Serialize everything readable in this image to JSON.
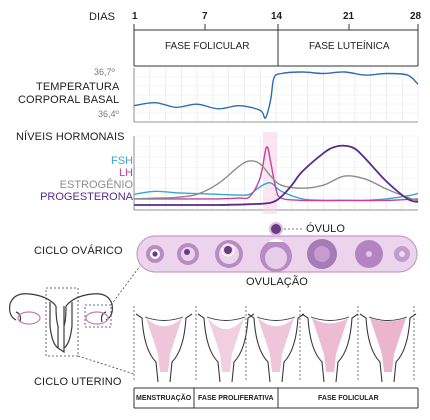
{
  "axis": {
    "title": "DIAS",
    "ticks": [
      "1",
      "7",
      "14",
      "21",
      "28"
    ]
  },
  "phases": {
    "follicular": "FASE FOLICULAR",
    "luteal": "FASE LUTEÍNICA"
  },
  "temperature": {
    "label_line1": "TEMPERATURA",
    "label_line2": "CORPORAL BASAL",
    "max": "36,7º",
    "min": "36,4º"
  },
  "hormones": {
    "title": "NÍVEIS HORMONAIS",
    "fsh": "FSH",
    "lh": "LH",
    "estrogen": "ESTROGÊNIO",
    "progesterone": "PROGESTERONA"
  },
  "ovarian": {
    "title": "CICLO OVÁRICO",
    "ovum": "ÓVULO",
    "ovulation": "OVULAÇÃO"
  },
  "uterine": {
    "title": "CICLO UTERINO",
    "menstruation": "MENSTRUAÇÃO",
    "proliferative": "FASE PROLIFERATIVA",
    "follicular": "FASE FOLICULAR"
  },
  "colors": {
    "fsh": "#35a9c9",
    "lh": "#c5419e",
    "estrogen": "#8c8c8c",
    "progesterone": "#5a2a8c",
    "temperature": "#2a6db0",
    "ovary_band": "#dcb8dd",
    "ovary_follicle": "#a36cb3",
    "endometrium": "#e6a3c2"
  },
  "chart_data": {
    "type": "line",
    "xlabel": "DIAS",
    "xlim": [
      1,
      28
    ],
    "series": [
      {
        "name": "FSH",
        "x": [
          1,
          3,
          5,
          7,
          9,
          11,
          12,
          13,
          14,
          15,
          17,
          19,
          21,
          23,
          25,
          27,
          28
        ],
        "y": [
          0.18,
          0.22,
          0.2,
          0.19,
          0.18,
          0.17,
          0.18,
          0.28,
          0.33,
          0.22,
          0.12,
          0.1,
          0.1,
          0.1,
          0.12,
          0.16,
          0.19
        ]
      },
      {
        "name": "LH",
        "x": [
          1,
          3,
          5,
          7,
          9,
          11,
          12,
          13,
          13.6,
          14,
          14.5,
          15,
          17,
          21,
          25,
          28
        ],
        "y": [
          0.12,
          0.12,
          0.12,
          0.12,
          0.12,
          0.13,
          0.15,
          0.4,
          0.8,
          0.6,
          0.25,
          0.13,
          0.1,
          0.1,
          0.1,
          0.12
        ]
      },
      {
        "name": "ESTROGÊNIO",
        "x": [
          1,
          3,
          5,
          7,
          9,
          11,
          12,
          13,
          14,
          15,
          17,
          19,
          21,
          23,
          25,
          27,
          28
        ],
        "y": [
          0.12,
          0.13,
          0.14,
          0.18,
          0.32,
          0.55,
          0.62,
          0.58,
          0.42,
          0.3,
          0.26,
          0.3,
          0.42,
          0.38,
          0.25,
          0.14,
          0.1
        ]
      },
      {
        "name": "PROGESTERONA",
        "x": [
          1,
          5,
          9,
          12,
          14,
          15,
          16,
          17,
          19,
          20,
          21,
          22,
          23,
          25,
          27,
          28
        ],
        "y": [
          0.04,
          0.04,
          0.04,
          0.05,
          0.07,
          0.15,
          0.3,
          0.48,
          0.72,
          0.8,
          0.82,
          0.78,
          0.65,
          0.35,
          0.12,
          0.08
        ]
      }
    ],
    "temperature": {
      "name": "TEMPERATURA CORPORAL BASAL",
      "x": [
        1,
        3,
        5,
        7,
        9,
        11,
        13,
        13.5,
        14,
        14.3,
        15,
        17,
        19,
        21,
        23,
        25,
        27,
        28
      ],
      "y": [
        36.48,
        36.5,
        36.47,
        36.49,
        36.46,
        36.48,
        36.45,
        36.4,
        36.52,
        36.66,
        36.69,
        36.7,
        36.69,
        36.7,
        36.68,
        36.69,
        36.68,
        36.62
      ]
    }
  }
}
